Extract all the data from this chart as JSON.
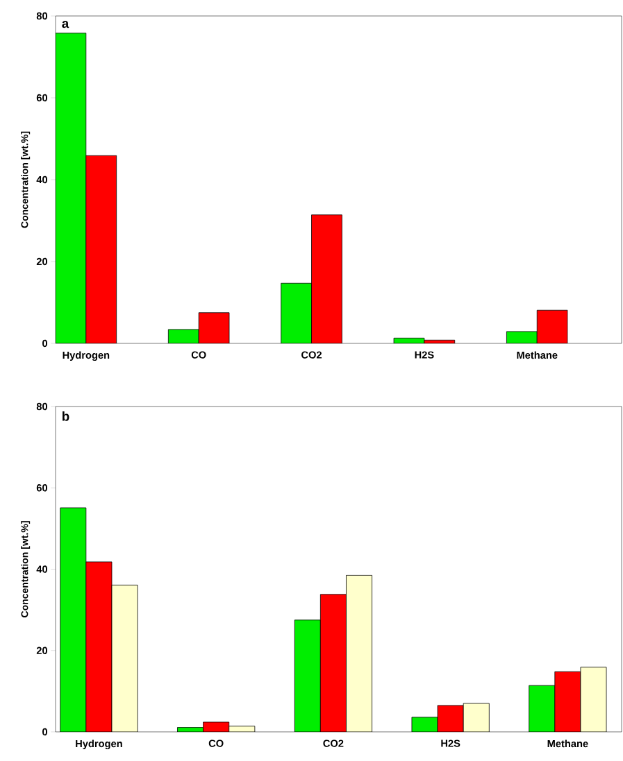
{
  "chart_data": [
    {
      "type": "bar",
      "ylabel": "Concentration [wt.%]",
      "categories": [
        "Hydrogen",
        "CO",
        "CO2",
        "H2S",
        "Methane"
      ],
      "ylim": [
        0,
        80
      ],
      "yticks": [
        0,
        20,
        40,
        60,
        80
      ],
      "annotations": [
        "a"
      ],
      "series": [
        {
          "color": "#00ee00",
          "values": [
            75.8,
            3.4,
            14.7,
            1.3,
            2.9
          ]
        },
        {
          "color": "#ff0000",
          "values": [
            45.9,
            7.5,
            31.4,
            0.8,
            8.1
          ]
        }
      ]
    },
    {
      "type": "bar",
      "ylabel": "Concentration [wt.%]",
      "categories": [
        "Hydrogen",
        "CO",
        "CO2",
        "H2S",
        "Methane"
      ],
      "ylim": [
        0,
        80
      ],
      "yticks": [
        0,
        20,
        40,
        60,
        80
      ],
      "annotations": [
        "b"
      ],
      "series": [
        {
          "color": "#00ee00",
          "values": [
            55.1,
            1.1,
            27.5,
            3.6,
            11.4
          ]
        },
        {
          "color": "#ff0000",
          "values": [
            41.8,
            2.4,
            33.8,
            6.5,
            14.8
          ]
        },
        {
          "color": "#ffffcc",
          "values": [
            36.1,
            1.4,
            38.5,
            7.0,
            15.9
          ]
        }
      ]
    }
  ]
}
